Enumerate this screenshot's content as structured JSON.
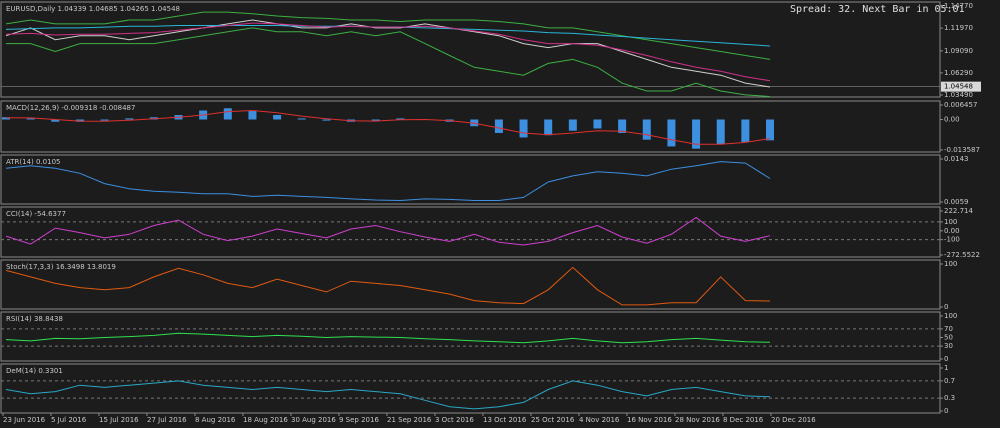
{
  "chart_data": [
    {
      "type": "line",
      "title": "EURUSD,Daily 1.04339 1.04685 1.04265 1.04548",
      "last_value": 1.04548,
      "ylim": [
        1.0349,
        1.1477
      ],
      "yticks": [
        {
          "value": 1.1477,
          "label": "1.14770"
        },
        {
          "value": 1.1197,
          "label": "1.11970"
        },
        {
          "value": 1.0909,
          "label": "1.09090"
        },
        {
          "value": 1.0629,
          "label": "1.06290"
        },
        {
          "value": 1.0349,
          "label": "1.03490"
        }
      ],
      "series": [
        {
          "color": "#d0d0d0",
          "values": [
            1.11,
            1.12,
            1.105,
            1.11,
            1.11,
            1.105,
            1.11,
            1.115,
            1.12,
            1.125,
            1.13,
            1.125,
            1.12,
            1.12,
            1.125,
            1.12,
            1.12,
            1.125,
            1.12,
            1.115,
            1.11,
            1.1,
            1.095,
            1.1,
            1.1,
            1.09,
            1.08,
            1.07,
            1.065,
            1.06,
            1.05,
            1.045
          ]
        },
        {
          "color": "#3cb043",
          "values": [
            1.1,
            1.1,
            1.09,
            1.1,
            1.1,
            1.1,
            1.1,
            1.105,
            1.11,
            1.115,
            1.12,
            1.115,
            1.115,
            1.11,
            1.115,
            1.11,
            1.115,
            1.1,
            1.085,
            1.07,
            1.065,
            1.06,
            1.075,
            1.08,
            1.07,
            1.05,
            1.04,
            1.04,
            1.05,
            1.04,
            1.035,
            1.033
          ]
        },
        {
          "color": "#3cb043",
          "values": [
            1.125,
            1.13,
            1.125,
            1.125,
            1.125,
            1.13,
            1.13,
            1.135,
            1.14,
            1.14,
            1.138,
            1.135,
            1.133,
            1.132,
            1.13,
            1.13,
            1.128,
            1.13,
            1.13,
            1.13,
            1.128,
            1.125,
            1.12,
            1.12,
            1.115,
            1.11,
            1.105,
            1.1,
            1.095,
            1.09,
            1.085,
            1.08
          ]
        },
        {
          "color": "#29b6d8",
          "values": [
            1.118,
            1.119,
            1.12,
            1.12,
            1.121,
            1.122,
            1.122,
            1.123,
            1.123,
            1.123,
            1.123,
            1.123,
            1.122,
            1.122,
            1.122,
            1.121,
            1.121,
            1.12,
            1.119,
            1.118,
            1.117,
            1.116,
            1.114,
            1.113,
            1.111,
            1.109,
            1.107,
            1.105,
            1.103,
            1.101,
            1.099,
            1.097
          ]
        },
        {
          "color": "#d0308a",
          "values": [
            1.112,
            1.113,
            1.111,
            1.112,
            1.112,
            1.113,
            1.114,
            1.117,
            1.12,
            1.123,
            1.126,
            1.125,
            1.123,
            1.121,
            1.122,
            1.121,
            1.121,
            1.122,
            1.12,
            1.116,
            1.112,
            1.105,
            1.1,
            1.1,
            1.098,
            1.092,
            1.085,
            1.077,
            1.07,
            1.065,
            1.058,
            1.053
          ]
        }
      ]
    },
    {
      "type": "line",
      "title": "MACD(12,26,9) -0.009318 -0.008487",
      "ylim": [
        -0.013587,
        0.006457
      ],
      "yticks": [
        0.006457,
        {
          "value": 0,
          "label": "0.00"
        },
        -0.013587
      ],
      "series": [
        {
          "type": "bar",
          "color": "#3d8fe0",
          "values": [
            0.001,
            0.0005,
            -0.001,
            -0.001,
            -0.0005,
            0.0005,
            0.001,
            0.002,
            0.004,
            0.005,
            0.004,
            0.002,
            0.0005,
            -0.0005,
            -0.001,
            -0.0005,
            0.0005,
            0,
            -0.001,
            -0.003,
            -0.006,
            -0.008,
            -0.007,
            -0.005,
            -0.004,
            -0.006,
            -0.009,
            -0.012,
            -0.013,
            -0.011,
            -0.01,
            -0.0093
          ]
        },
        {
          "color": "#e03030",
          "values": [
            0.0008,
            0.0007,
            0,
            -0.0007,
            -0.0008,
            -0.0003,
            0.0003,
            0.001,
            0.002,
            0.0035,
            0.004,
            0.003,
            0.0015,
            0.0003,
            -0.0006,
            -0.0007,
            -0.0001,
            0,
            -0.0005,
            -0.0017,
            -0.0038,
            -0.006,
            -0.0068,
            -0.006,
            -0.005,
            -0.0052,
            -0.0068,
            -0.009,
            -0.011,
            -0.011,
            -0.0102,
            -0.0085
          ]
        }
      ]
    },
    {
      "type": "line",
      "title": "ATR(14) 0.0105",
      "ylim": [
        0.0059,
        0.0143
      ],
      "yticks": [
        0.0143,
        0.0059
      ],
      "series": [
        {
          "color": "#3d8fe0",
          "values": [
            0.0125,
            0.013,
            0.0125,
            0.0115,
            0.0095,
            0.0085,
            0.008,
            0.0078,
            0.0075,
            0.0075,
            0.007,
            0.0072,
            0.007,
            0.0068,
            0.0065,
            0.0063,
            0.0062,
            0.0065,
            0.0064,
            0.0062,
            0.0062,
            0.0068,
            0.0098,
            0.011,
            0.0118,
            0.0115,
            0.011,
            0.0123,
            0.013,
            0.0138,
            0.0135,
            0.0105
          ]
        }
      ]
    },
    {
      "type": "line",
      "title": "CCI(14) -54.6377",
      "ylim": [
        -272.5522,
        222.714
      ],
      "yticks": [
        222.714,
        100,
        {
          "value": 0,
          "label": "0.00"
        },
        -100,
        -272.5522
      ],
      "levels": [
        100,
        -100
      ],
      "series": [
        {
          "color": "#d040d0",
          "values": [
            -60,
            -150,
            30,
            -20,
            -80,
            -40,
            60,
            120,
            -40,
            -110,
            -60,
            20,
            -30,
            -80,
            20,
            60,
            -10,
            -70,
            -120,
            -40,
            -130,
            -160,
            -120,
            -20,
            60,
            -70,
            -140,
            -40,
            150,
            -60,
            -120,
            -55
          ]
        }
      ]
    },
    {
      "type": "line",
      "title": "Stoch(17,3,3) 16.3498 13.8019",
      "ylim": [
        0,
        100
      ],
      "yticks": [
        100,
        0
      ],
      "series": [
        {
          "color": "#e05a10",
          "values": [
            85,
            70,
            55,
            45,
            40,
            45,
            70,
            90,
            75,
            55,
            45,
            65,
            50,
            35,
            60,
            55,
            50,
            40,
            30,
            15,
            10,
            8,
            40,
            92,
            40,
            5,
            5,
            10,
            10,
            70,
            15,
            14
          ]
        }
      ]
    },
    {
      "type": "line",
      "title": "RSI(14) 38.8438",
      "ylim": [
        0,
        100
      ],
      "yticks": [
        100,
        70,
        50,
        30,
        0
      ],
      "levels": [
        70,
        30
      ],
      "series": [
        {
          "color": "#30e050",
          "values": [
            45,
            42,
            48,
            47,
            50,
            52,
            55,
            60,
            58,
            55,
            52,
            55,
            53,
            50,
            52,
            51,
            50,
            47,
            45,
            42,
            40,
            38,
            42,
            48,
            42,
            38,
            40,
            45,
            48,
            44,
            40,
            38.8
          ]
        }
      ]
    },
    {
      "type": "line",
      "title": "DeM(14) 0.3301",
      "ylim": [
        0,
        1
      ],
      "yticks": [
        1,
        0.7,
        0.3,
        0
      ],
      "levels": [
        0.7,
        0.3
      ],
      "series": [
        {
          "color": "#29a8c8",
          "values": [
            0.5,
            0.4,
            0.45,
            0.6,
            0.55,
            0.6,
            0.65,
            0.7,
            0.6,
            0.55,
            0.5,
            0.55,
            0.5,
            0.45,
            0.5,
            0.45,
            0.4,
            0.25,
            0.1,
            0.05,
            0.1,
            0.2,
            0.5,
            0.7,
            0.6,
            0.45,
            0.35,
            0.5,
            0.55,
            0.45,
            0.35,
            0.33
          ]
        }
      ]
    }
  ],
  "x_labels": [
    "23 Jun 2016",
    "5 Jul 2016",
    "15 Jul 2016",
    "27 Jul 2016",
    "8 Aug 2016",
    "18 Aug 2016",
    "30 Aug 2016",
    "9 Sep 2016",
    "21 Sep 2016",
    "3 Oct 2016",
    "13 Oct 2016",
    "25 Oct 2016",
    "4 Nov 2016",
    "16 Nov 2016",
    "28 Nov 2016",
    "8 Dec 2016",
    "20 Dec 2016"
  ],
  "status": "Spread: 32. Next Bar in 05:01"
}
